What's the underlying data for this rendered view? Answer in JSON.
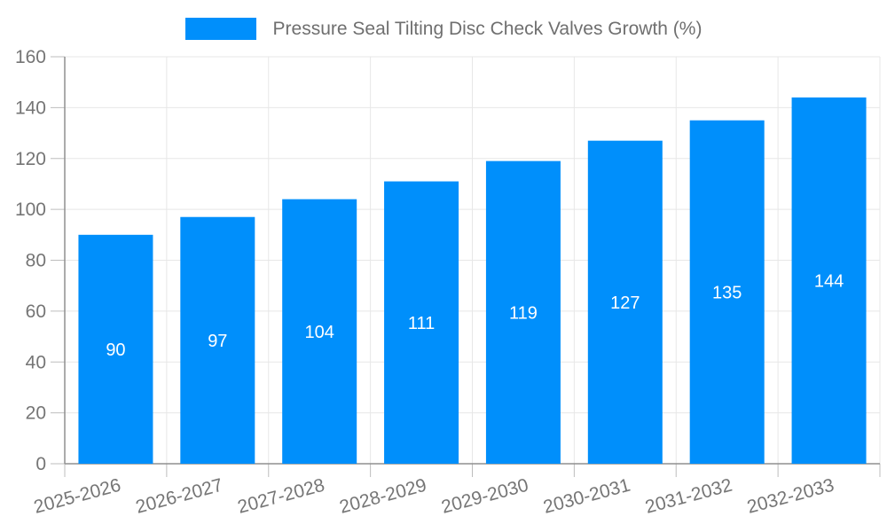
{
  "chart_data": {
    "type": "bar",
    "title": "Pressure Seal Tilting Disc Check Valves Growth (%)",
    "categories": [
      "2025-2026",
      "2026-2027",
      "2027-2028",
      "2028-2029",
      "2029-2030",
      "2030-2031",
      "2031-2032",
      "2032-2033"
    ],
    "values": [
      90,
      97,
      104,
      111,
      119,
      127,
      135,
      144
    ],
    "series": [
      {
        "name": "Pressure Seal Tilting Disc Check Valves Growth (%)",
        "values": [
          90,
          97,
          104,
          111,
          119,
          127,
          135,
          144
        ]
      }
    ],
    "xlabel": "",
    "ylabel": "",
    "ylim": [
      0,
      160
    ],
    "yticks": [
      0,
      20,
      40,
      60,
      80,
      100,
      120,
      140,
      160
    ],
    "grid": true,
    "legend_position": "top",
    "bar_label_position": "center",
    "x_label_rotation_deg": -15,
    "colors": {
      "bar": "#008FFB",
      "bar_label": "#FFFFFF",
      "axis_text": "#757575",
      "legend_text": "#6F6F6F",
      "grid": "#E7E7E7",
      "axis_line": "#8F8F8F",
      "tick": "#BDBDBD",
      "background": "#FFFFFF"
    }
  }
}
